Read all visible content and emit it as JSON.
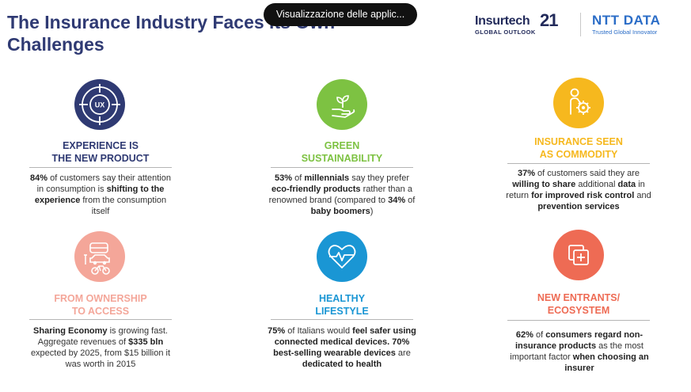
{
  "slide": {
    "title": "The Insurance Industry Faces its Own Challenges",
    "tooltip": "Visualizzazione delle applic...",
    "logos": {
      "insurtech_main": "Insurtech",
      "insurtech_num": "21",
      "insurtech_sub": "GLOBAL OUTLOOK",
      "ntt_main": "NTT DATA",
      "ntt_sub": "Trusted Global Innovator"
    }
  },
  "colors": {
    "navy": "#2f3a73",
    "green": "#7dc242",
    "yellow": "#f6b81e",
    "peach": "#f4a699",
    "blue": "#1a96d4",
    "red": "#ee6b54"
  },
  "cards": [
    {
      "title_line1": "EXPERIENCE IS",
      "title_line2": "THE NEW PRODUCT",
      "icon": "ux-target-icon",
      "body": [
        [
          {
            "t": "84%",
            "b": true
          },
          {
            "t": " of customers say their attention in consumption is ",
            "b": false
          },
          {
            "t": "shifting to the experience",
            "b": true
          },
          {
            "t": " from the consumption itself",
            "b": false
          }
        ]
      ]
    },
    {
      "title_line1": "GREEN",
      "title_line2": "SUSTAINABILITY",
      "icon": "hand-plant-icon",
      "body": [
        [
          {
            "t": "53%",
            "b": true
          },
          {
            "t": " of ",
            "b": false
          },
          {
            "t": "millennials",
            "b": true
          },
          {
            "t": " say they prefer ",
            "b": false
          },
          {
            "t": "eco-friendly products",
            "b": true
          },
          {
            "t": " rather than a renowned brand (compared to ",
            "b": false
          },
          {
            "t": "34%",
            "b": true
          },
          {
            "t": " of ",
            "b": false
          },
          {
            "t": "baby boomers",
            "b": true
          },
          {
            "t": ")",
            "b": false
          }
        ]
      ]
    },
    {
      "title_line1": "INSURANCE SEEN",
      "title_line2": "AS COMMODITY",
      "icon": "person-gear-icon",
      "body": [
        [
          {
            "t": "37%",
            "b": true
          },
          {
            "t": " of customers said they are ",
            "b": false
          },
          {
            "t": "willing to share",
            "b": true
          },
          {
            "t": " additional ",
            "b": false
          },
          {
            "t": "data",
            "b": true
          },
          {
            "t": " in return ",
            "b": false
          },
          {
            "t": "for improved risk control",
            "b": true
          },
          {
            "t": " and ",
            "b": false
          },
          {
            "t": "prevention services",
            "b": true
          }
        ]
      ]
    },
    {
      "title_line1": "FROM OWNERSHIP",
      "title_line2": "TO ACCESS",
      "icon": "shared-mobility-icon",
      "body": [
        [
          {
            "t": "Sharing Economy",
            "b": true
          },
          {
            "t": " is growing fast. Aggregate revenues of ",
            "b": false
          },
          {
            "t": "$335 bln",
            "b": true
          },
          {
            "t": " expected by 2025, from $15 billion it was worth in 2015",
            "b": false
          }
        ]
      ]
    },
    {
      "title_line1": "HEALTHY",
      "title_line2": "LIFESTYLE",
      "icon": "heart-pulse-icon",
      "body": [
        [
          {
            "t": "75%",
            "b": true
          },
          {
            "t": " of Italians would ",
            "b": false
          },
          {
            "t": "feel safer using connected medical devices. 70% best-selling wearable devices",
            "b": true
          },
          {
            "t": " are ",
            "b": false
          },
          {
            "t": "dedicated to health",
            "b": true
          }
        ]
      ]
    },
    {
      "title_line1": "NEW ENTRANTS/",
      "title_line2": "ECOSYSTEM",
      "icon": "add-squares-icon",
      "body": [
        [
          {
            "t": "62%",
            "b": true
          },
          {
            "t": " of ",
            "b": false
          },
          {
            "t": "consumers regard non-insurance products",
            "b": true
          },
          {
            "t": " as the most important factor ",
            "b": false
          },
          {
            "t": "when choosing an insurer",
            "b": true
          }
        ]
      ]
    }
  ]
}
